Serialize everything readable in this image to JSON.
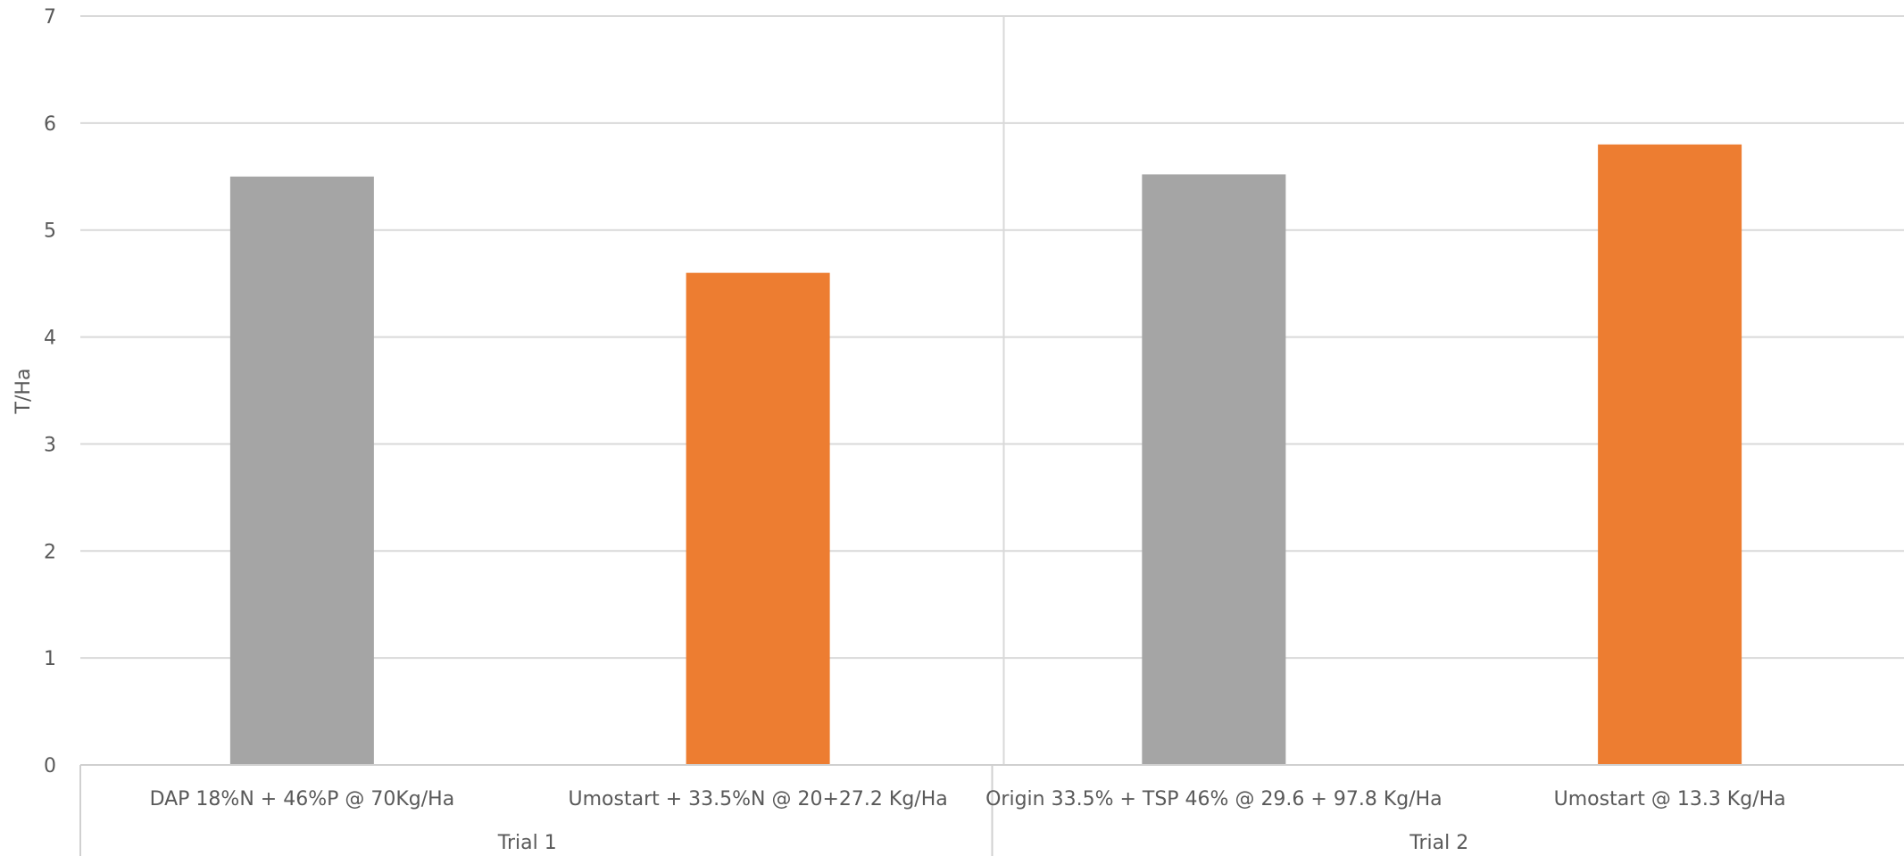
{
  "chart_data": {
    "type": "bar",
    "title": "",
    "xlabel": "",
    "ylabel": "T/Ha",
    "ylim": [
      0,
      7
    ],
    "yticks": [
      0,
      1,
      2,
      3,
      4,
      5,
      6,
      7
    ],
    "grid": true,
    "legend": "none",
    "groups": [
      {
        "label": "Trial 1",
        "count": 2
      },
      {
        "label": "Trial 2",
        "count": 2
      }
    ],
    "categories": [
      "DAP 18%N + 46%P @ 70Kg/Ha",
      "Umostart + 33.5%N @ 20+27.2 Kg/Ha",
      "Origin 33.5% + TSP 46% @ 29.6 + 97.8 Kg/Ha",
      "Umostart @ 13.3 Kg/Ha"
    ],
    "values": [
      5.5,
      4.6,
      5.52,
      5.8
    ],
    "colors": [
      "#a5a5a5",
      "#ed7d31",
      "#a5a5a5",
      "#ed7d31"
    ]
  }
}
